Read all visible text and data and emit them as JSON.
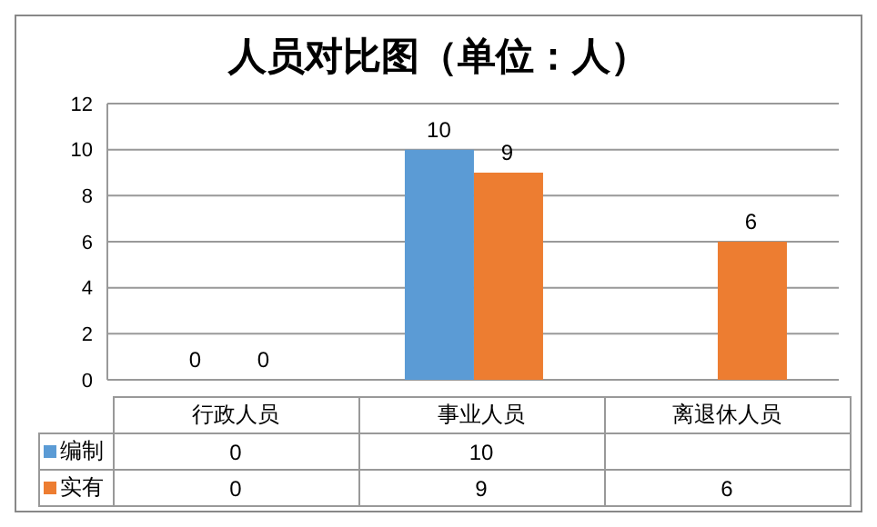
{
  "chart_data": {
    "type": "bar",
    "title": "人员对比图（单位：人）",
    "categories": [
      "行政人员",
      "事业人员",
      "离退休人员"
    ],
    "series": [
      {
        "name": "编制",
        "color": "#5b9bd5",
        "values": [
          0,
          10,
          null
        ]
      },
      {
        "name": "实有",
        "color": "#ed7d31",
        "values": [
          0,
          9,
          6
        ]
      }
    ],
    "annotations": [
      {
        "text": "0",
        "x": "行政人员",
        "y": 0
      },
      {
        "text": "0",
        "x": "行政人员",
        "y": 0
      },
      {
        "text": "10",
        "x": "事业人员",
        "y": 10
      },
      {
        "text": "9",
        "x": "事业人员",
        "y": 9
      },
      {
        "text": "6",
        "x": "离退休人员",
        "y": 6
      }
    ],
    "ylim": [
      0,
      12
    ],
    "yticks": [
      0,
      2,
      4,
      6,
      8,
      10,
      12
    ],
    "grid": "y",
    "legend": "bottom",
    "data_labels": true
  }
}
